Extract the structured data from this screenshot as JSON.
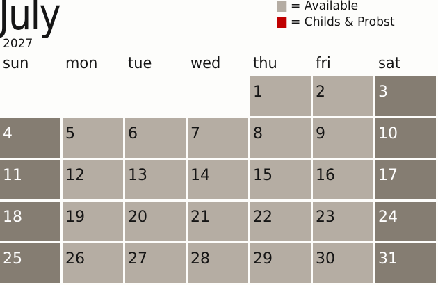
{
  "header": {
    "month": "July",
    "year": "2027"
  },
  "legend": [
    {
      "label": "= Available",
      "color": "#b5ada3"
    },
    {
      "label": "= Childs & Probst",
      "color": "#c00000"
    }
  ],
  "colors": {
    "weekday_available": "#b5ada3",
    "weekend": "#857d72"
  },
  "weekdays": [
    "sun",
    "mon",
    "tue",
    "wed",
    "thu",
    "fri",
    "sat"
  ],
  "first_weekday_index": 4,
  "days": [
    "1",
    "2",
    "3",
    "4",
    "5",
    "6",
    "7",
    "8",
    "9",
    "10",
    "11",
    "12",
    "13",
    "14",
    "15",
    "16",
    "17",
    "18",
    "19",
    "20",
    "21",
    "22",
    "23",
    "24",
    "25",
    "26",
    "27",
    "28",
    "29",
    "30",
    "31"
  ]
}
